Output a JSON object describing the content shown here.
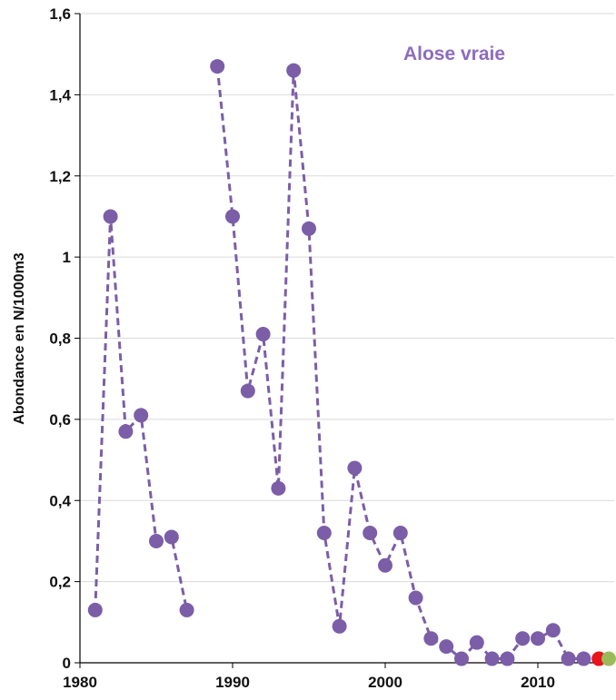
{
  "chart_data": {
    "type": "line",
    "title": "Alose vraie",
    "xlabel": "",
    "ylabel": "Abondance en N/1000m3",
    "xlim": [
      1980,
      2015
    ],
    "ylim": [
      0,
      1.6
    ],
    "xticks": [
      1980,
      1990,
      2000,
      2010
    ],
    "xtick_labels": [
      "1980",
      "1990",
      "2000",
      "2010"
    ],
    "yticks": [
      0,
      0.2,
      0.4,
      0.6,
      0.8,
      1,
      1.2,
      1.4,
      1.6
    ],
    "ytick_labels": [
      "0",
      "0,2",
      "0,4",
      "0,6",
      "0,8",
      "1",
      "1,2",
      "1,4",
      "1,6"
    ],
    "grid": true,
    "legend": "none",
    "colors": {
      "series": "#7b5ea7",
      "title": "#8e6bbf",
      "highlight_red": "#e8141a",
      "highlight_green": "#9bbb59",
      "grid": "#d9d9d9",
      "axis": "#000000"
    },
    "series": [
      {
        "style": "dashed-line-with-markers",
        "segments": [
          [
            [
              1981,
              0.13
            ],
            [
              1982,
              1.1
            ],
            [
              1983,
              0.57
            ],
            [
              1984,
              0.61
            ],
            [
              1985,
              0.3
            ],
            [
              1986,
              0.31
            ],
            [
              1987,
              0.13
            ]
          ],
          [
            [
              1989,
              1.47
            ],
            [
              1990,
              1.1
            ],
            [
              1991,
              0.67
            ],
            [
              1992,
              0.81
            ],
            [
              1993,
              0.43
            ],
            [
              1994,
              1.46
            ],
            [
              1995,
              1.07
            ],
            [
              1996,
              0.32
            ],
            [
              1997,
              0.09
            ],
            [
              1998,
              0.48
            ],
            [
              1999,
              0.32
            ],
            [
              2000,
              0.24
            ],
            [
              2001,
              0.32
            ],
            [
              2002,
              0.16
            ],
            [
              2003,
              0.06
            ],
            [
              2004,
              0.04
            ],
            [
              2005,
              0.01
            ],
            [
              2006,
              0.05
            ],
            [
              2007,
              0.01
            ],
            [
              2008,
              0.01
            ],
            [
              2009,
              0.06
            ],
            [
              2010,
              0.06
            ],
            [
              2011,
              0.08
            ],
            [
              2012,
              0.01
            ],
            [
              2013,
              0.01
            ]
          ]
        ]
      }
    ],
    "highlight_points": [
      {
        "x": 2014,
        "y": 0.01,
        "color": "#e8141a"
      },
      {
        "x": 2015,
        "y": 0.01,
        "color": "#9bbb59"
      }
    ]
  }
}
